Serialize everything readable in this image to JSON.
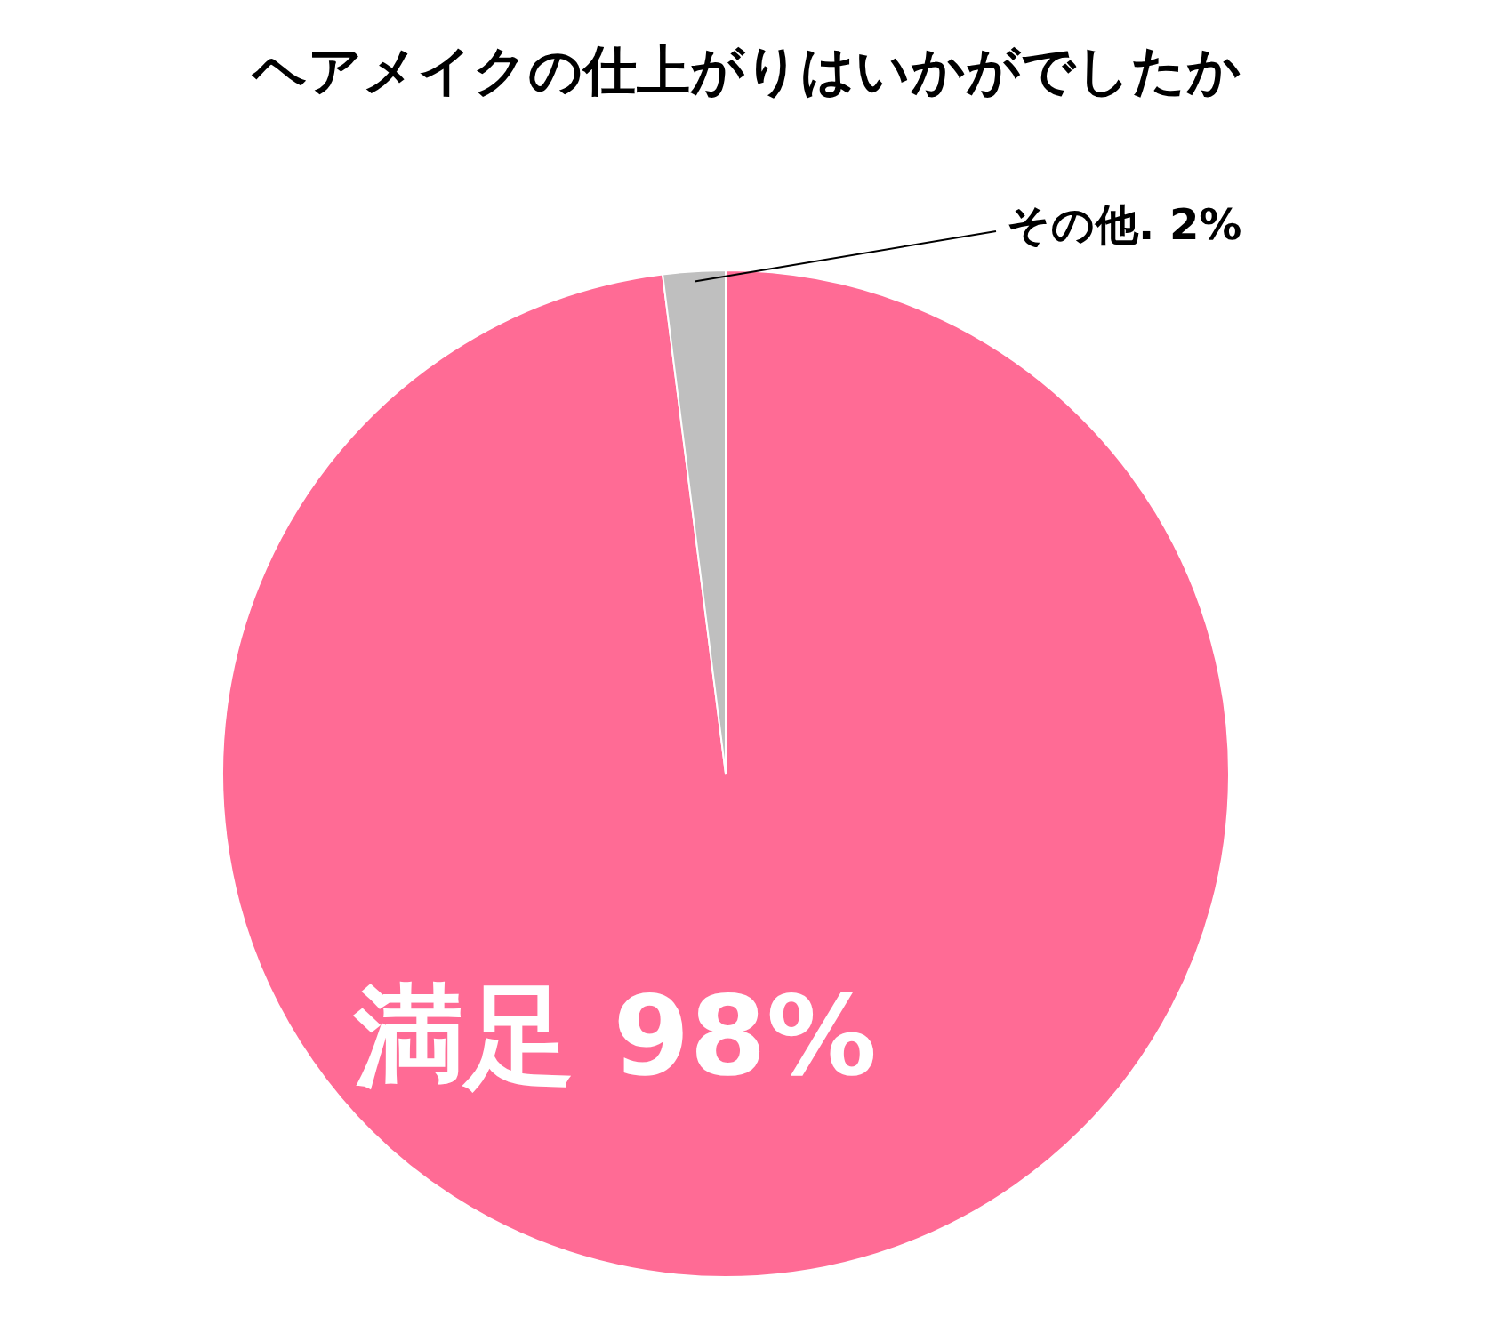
{
  "chart_data": {
    "type": "pie",
    "title": "ヘアメイクの仕上がりはいかがでしたか",
    "categories": [
      "満足",
      "その他."
    ],
    "values": [
      98,
      2
    ],
    "colors": [
      "#ff6b95",
      "#bfbfbf"
    ],
    "value_labels": [
      "98%",
      "2%"
    ],
    "legend": false
  }
}
